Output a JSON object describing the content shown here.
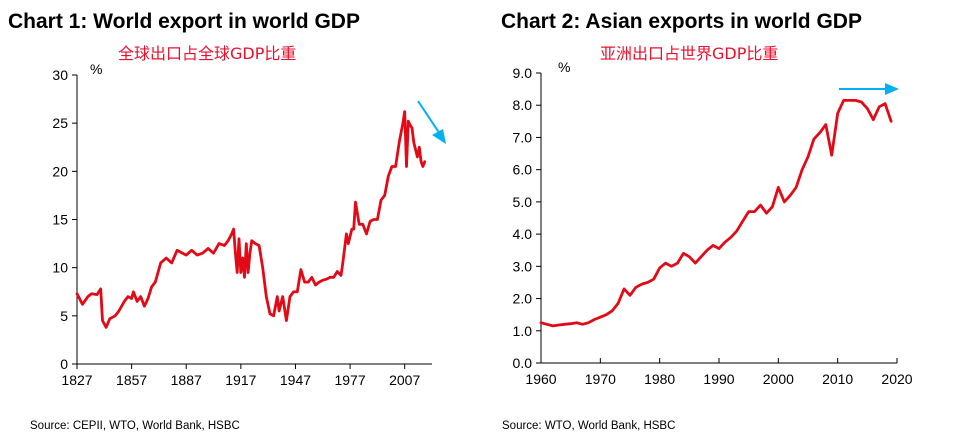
{
  "chart_data": [
    {
      "type": "line",
      "title": "Chart 1: World export in world GDP",
      "subtitle": "全球出口占全球GDP比重",
      "ylabel": "%",
      "xlabel": "",
      "source": "Source: CEPII, WTO, World Bank, HSBC",
      "xlim": [
        1827,
        2022
      ],
      "ylim": [
        0,
        30
      ],
      "x_ticks": [
        1827,
        1857,
        1887,
        1917,
        1947,
        1977,
        2007
      ],
      "x_tick_labels": [
        "1827",
        "1857",
        "1887",
        "1917",
        "1947",
        "1977",
        "2007"
      ],
      "y_ticks": [
        0,
        5,
        10,
        15,
        20,
        25,
        30
      ],
      "y_tick_labels": [
        "0",
        "5",
        "10",
        "15",
        "20",
        "25",
        "30"
      ],
      "grid": false,
      "line_color": "#e20a16",
      "arrow_color": "#00b0f0",
      "arrow_direction": "down-right",
      "series": [
        {
          "x": [
            1827,
            1830,
            1833,
            1835,
            1838,
            1840,
            1841,
            1843,
            1845,
            1848,
            1850,
            1853,
            1855,
            1857,
            1858,
            1860,
            1862,
            1864,
            1866,
            1868,
            1870,
            1873,
            1876,
            1879,
            1882,
            1885,
            1887,
            1890,
            1893,
            1896,
            1899,
            1902,
            1905,
            1908,
            1910,
            1912,
            1913,
            1914,
            1915,
            1916,
            1917,
            1918,
            1919,
            1920,
            1921,
            1922,
            1923,
            1925,
            1927,
            1929,
            1931,
            1933,
            1935,
            1937,
            1938,
            1940,
            1942,
            1944,
            1946,
            1948,
            1950,
            1952,
            1954,
            1956,
            1958,
            1960,
            1962,
            1964,
            1966,
            1968,
            1970,
            1972,
            1973,
            1975,
            1976,
            1978,
            1979,
            1980,
            1982,
            1984,
            1986,
            1988,
            1990,
            1992,
            1994,
            1996,
            1998,
            2000,
            2002,
            2004,
            2006,
            2007,
            2008,
            2009,
            2010,
            2011,
            2012,
            2014,
            2015,
            2016,
            2017,
            2018
          ],
          "values": [
            7.3,
            6.2,
            7.0,
            7.3,
            7.2,
            7.8,
            4.5,
            3.8,
            4.7,
            5.0,
            5.5,
            6.5,
            7.0,
            6.8,
            7.5,
            6.5,
            7.0,
            6.0,
            6.8,
            8.0,
            8.5,
            10.5,
            11.0,
            10.5,
            11.8,
            11.5,
            11.3,
            11.8,
            11.3,
            11.5,
            12.0,
            11.5,
            12.5,
            12.3,
            12.8,
            13.5,
            14.0,
            11.5,
            9.5,
            13.0,
            9.5,
            11.0,
            9.0,
            12.5,
            9.5,
            11.5,
            12.8,
            12.5,
            12.3,
            10.0,
            7.0,
            5.2,
            5.0,
            7.0,
            5.5,
            7.0,
            4.5,
            7.0,
            7.5,
            7.5,
            9.8,
            8.5,
            8.5,
            9.0,
            8.2,
            8.5,
            8.7,
            8.8,
            9.0,
            9.0,
            9.6,
            9.2,
            10.5,
            13.5,
            12.5,
            14.0,
            14.0,
            16.8,
            14.5,
            14.5,
            13.5,
            14.8,
            15.0,
            15.0,
            17.0,
            17.5,
            19.5,
            20.5,
            20.5,
            23.0,
            25.0,
            26.2,
            20.5,
            25.2,
            24.8,
            24.5,
            23.0,
            21.5,
            22.5,
            21.0,
            20.5,
            21.0
          ],
          "pattern_note": ""
        }
      ]
    },
    {
      "type": "line",
      "title": "Chart 2: Asian exports in world GDP",
      "subtitle": "亚洲出口占世界GDP比重",
      "ylabel": "%",
      "xlabel": "",
      "source": "Source: WTO, World Bank, HSBC",
      "xlim": [
        1960,
        2020
      ],
      "ylim": [
        0,
        9
      ],
      "x_ticks": [
        1960,
        1970,
        1980,
        1990,
        2000,
        2010,
        2020
      ],
      "x_tick_labels": [
        "1960",
        "1970",
        "1980",
        "1990",
        "2000",
        "2010",
        "2020"
      ],
      "y_ticks": [
        0,
        1,
        2,
        3,
        4,
        5,
        6,
        7,
        8,
        9
      ],
      "y_tick_labels": [
        "0.0",
        "1.0",
        "2.0",
        "3.0",
        "4.0",
        "5.0",
        "6.0",
        "7.0",
        "8.0",
        "9.0"
      ],
      "grid": false,
      "line_color": "#e20a16",
      "arrow_color": "#00b0f0",
      "arrow_direction": "right",
      "series": [
        {
          "x": [
            1960,
            1961,
            1962,
            1963,
            1964,
            1965,
            1966,
            1967,
            1968,
            1969,
            1970,
            1971,
            1972,
            1973,
            1974,
            1975,
            1976,
            1977,
            1978,
            1979,
            1980,
            1981,
            1982,
            1983,
            1984,
            1985,
            1986,
            1987,
            1988,
            1989,
            1990,
            1991,
            1992,
            1993,
            1994,
            1995,
            1996,
            1997,
            1998,
            1999,
            2000,
            2001,
            2002,
            2003,
            2004,
            2005,
            2006,
            2007,
            2008,
            2009,
            2010,
            2011,
            2012,
            2013,
            2014,
            2015,
            2016,
            2017,
            2018,
            2019
          ],
          "values": [
            1.25,
            1.2,
            1.15,
            1.18,
            1.2,
            1.22,
            1.25,
            1.2,
            1.25,
            1.35,
            1.42,
            1.5,
            1.62,
            1.85,
            2.3,
            2.1,
            2.35,
            2.45,
            2.5,
            2.6,
            2.95,
            3.1,
            3.0,
            3.1,
            3.4,
            3.3,
            3.1,
            3.3,
            3.5,
            3.65,
            3.55,
            3.75,
            3.9,
            4.1,
            4.4,
            4.7,
            4.7,
            4.9,
            4.65,
            4.85,
            5.45,
            5.0,
            5.2,
            5.45,
            6.0,
            6.4,
            6.95,
            7.15,
            7.4,
            6.45,
            7.75,
            8.15,
            8.15,
            8.15,
            8.1,
            7.9,
            7.55,
            7.95,
            8.05,
            7.5
          ],
          "pattern_note": ""
        }
      ]
    }
  ]
}
